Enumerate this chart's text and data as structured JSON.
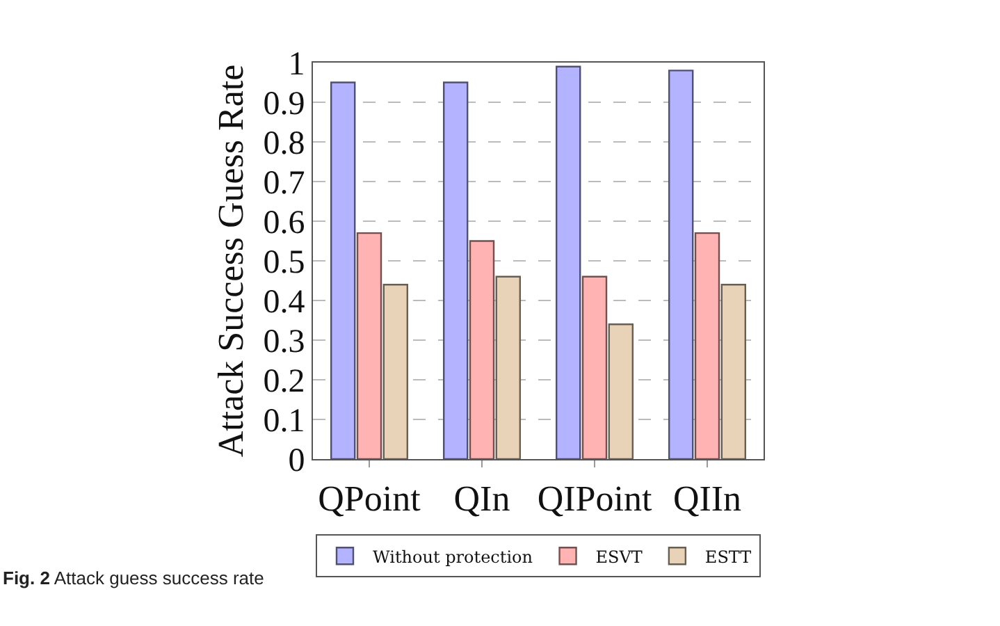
{
  "chart_data": {
    "type": "bar",
    "ylabel": "Attack Success Guess Rate",
    "categories": [
      "QPoint",
      "QIn",
      "QIPoint",
      "QIIn"
    ],
    "series": [
      {
        "name": "Without protection",
        "color": "#b3b3ff",
        "values": [
          0.95,
          0.95,
          0.99,
          0.98
        ]
      },
      {
        "name": "ESVT",
        "color": "#ffb3b3",
        "values": [
          0.57,
          0.55,
          0.46,
          0.57
        ]
      },
      {
        "name": "ESTT",
        "color": "#e8d2b8",
        "values": [
          0.44,
          0.46,
          0.34,
          0.44
        ]
      }
    ],
    "ylim": [
      0,
      1
    ],
    "yticks": [
      0,
      0.1,
      0.2,
      0.3,
      0.4,
      0.5,
      0.6,
      0.7,
      0.8,
      0.9,
      1
    ],
    "grid": "y",
    "legend": "bottom",
    "annotations": [
      "Fig. 2 Attack guess success rate"
    ]
  }
}
